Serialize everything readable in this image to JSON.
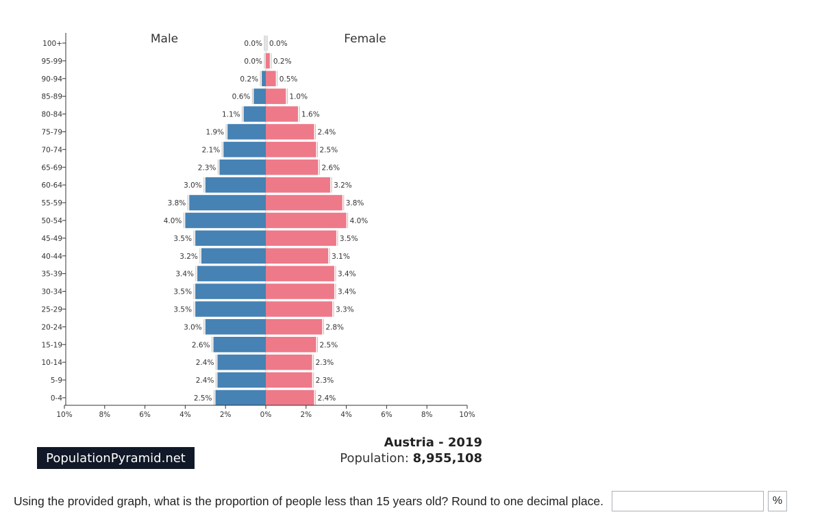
{
  "chart_data": {
    "type": "bar",
    "orientation": "horizontal-pyramid",
    "left_title": "Male",
    "right_title": "Female",
    "categories": [
      "100+",
      "95-99",
      "90-94",
      "85-89",
      "80-84",
      "75-79",
      "70-74",
      "65-69",
      "60-64",
      "55-59",
      "50-54",
      "45-49",
      "40-44",
      "35-39",
      "30-34",
      "25-29",
      "20-24",
      "15-19",
      "10-14",
      "5-9",
      "0-4"
    ],
    "series": [
      {
        "name": "Male",
        "color": "#4682b4",
        "values": [
          0.0,
          0.0,
          0.2,
          0.6,
          1.1,
          1.9,
          2.1,
          2.3,
          3.0,
          3.8,
          4.0,
          3.5,
          3.2,
          3.4,
          3.5,
          3.5,
          3.0,
          2.6,
          2.4,
          2.4,
          2.5
        ],
        "labels": [
          "0.0%",
          "0.0%",
          "0.2%",
          "0.6%",
          "1.1%",
          "1.9%",
          "2.1%",
          "2.3%",
          "3.0%",
          "3.8%",
          "4.0%",
          "3.5%",
          "3.2%",
          "3.4%",
          "3.5%",
          "3.5%",
          "3.0%",
          "2.6%",
          "2.4%",
          "2.4%",
          "2.5%"
        ]
      },
      {
        "name": "Female",
        "color": "#ee7989",
        "values": [
          0.0,
          0.2,
          0.5,
          1.0,
          1.6,
          2.4,
          2.5,
          2.6,
          3.2,
          3.8,
          4.0,
          3.5,
          3.1,
          3.4,
          3.4,
          3.3,
          2.8,
          2.5,
          2.3,
          2.3,
          2.4
        ],
        "labels": [
          "0.0%",
          "0.2%",
          "0.5%",
          "1.0%",
          "1.6%",
          "2.4%",
          "2.5%",
          "2.6%",
          "3.2%",
          "3.8%",
          "4.0%",
          "3.5%",
          "3.1%",
          "3.4%",
          "3.4%",
          "3.3%",
          "2.8%",
          "2.5%",
          "2.3%",
          "2.3%",
          "2.4%"
        ]
      }
    ],
    "xticks": [
      {
        "value": -10,
        "label": "10%"
      },
      {
        "value": -8,
        "label": "8%"
      },
      {
        "value": -6,
        "label": "6%"
      },
      {
        "value": -4,
        "label": "4%"
      },
      {
        "value": -2,
        "label": "2%"
      },
      {
        "value": 0,
        "label": "0%"
      },
      {
        "value": 2,
        "label": "2%"
      },
      {
        "value": 4,
        "label": "4%"
      },
      {
        "value": 6,
        "label": "6%"
      },
      {
        "value": 8,
        "label": "8%"
      },
      {
        "value": 10,
        "label": "10%"
      }
    ],
    "xlim": [
      -10,
      10
    ],
    "grid": false
  },
  "footer": {
    "brand": "PopulationPyramid.net",
    "country": "Austria - 2019",
    "population_label": "Population:",
    "population_value": "8,955,108"
  },
  "question": {
    "text": "Using the provided graph, what is the proportion of people less than 15 years old? Round to one decimal place.",
    "answer_value": "",
    "unit": "%"
  }
}
